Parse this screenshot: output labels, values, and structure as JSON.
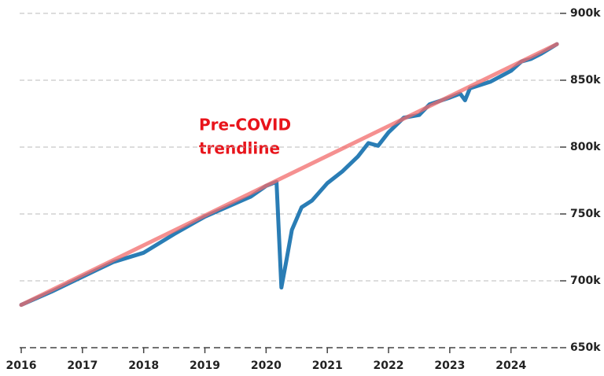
{
  "chart_data": {
    "type": "line",
    "annotation": [
      "Pre-COVID",
      "trendline"
    ],
    "xlim": [
      2016,
      2024.8
    ],
    "xticks": [
      2016,
      2017,
      2018,
      2019,
      2020,
      2021,
      2022,
      2023,
      2024
    ],
    "ylim": [
      650000,
      900000
    ],
    "yticks": [
      {
        "value": 650000,
        "label": "650k"
      },
      {
        "value": 700000,
        "label": "700k"
      },
      {
        "value": 750000,
        "label": "750k"
      },
      {
        "value": 800000,
        "label": "800k"
      },
      {
        "value": 850000,
        "label": "850k"
      },
      {
        "value": 900000,
        "label": "900k"
      }
    ],
    "grid": true,
    "series": [
      {
        "color": "#2a7db5",
        "opacity": 1,
        "x": [
          2016,
          2016.5,
          2017,
          2017.5,
          2018,
          2018.5,
          2019,
          2019.5,
          2019.75,
          2020,
          2020.17,
          2020.25,
          2020.33,
          2020.42,
          2020.58,
          2020.75,
          2021,
          2021.25,
          2021.5,
          2021.67,
          2021.83,
          2022,
          2022.25,
          2022.5,
          2022.67,
          2023,
          2023.17,
          2023.25,
          2023.33,
          2023.67,
          2024,
          2024.17,
          2024.33,
          2024.5,
          2024.75
        ],
        "values": [
          682000,
          692000,
          703000,
          714000,
          721000,
          735000,
          748000,
          758000,
          763000,
          771000,
          774000,
          695000,
          715000,
          738000,
          755000,
          760000,
          773000,
          782000,
          793000,
          803000,
          801000,
          811000,
          822000,
          824000,
          832000,
          837000,
          840000,
          835000,
          844000,
          849000,
          857000,
          864000,
          866000,
          870000,
          877000
        ]
      },
      {
        "color": "#f26b6b",
        "opacity": 0.75,
        "x": [
          2016,
          2024.75
        ],
        "values": [
          682000,
          877000
        ]
      }
    ]
  }
}
